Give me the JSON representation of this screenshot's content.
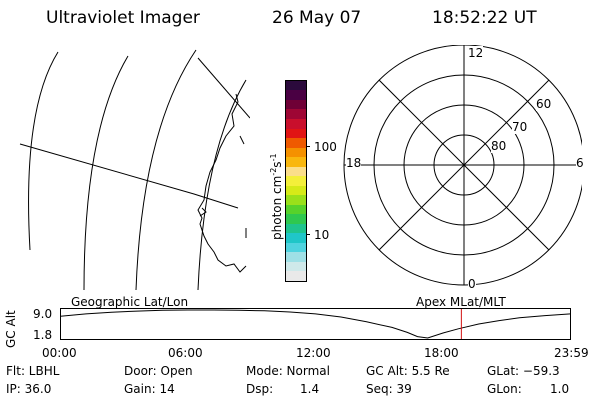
{
  "header": {
    "instrument": "Ultraviolet Imager",
    "date": "26 May 07",
    "time": "18:52:22 UT"
  },
  "colorbar": {
    "label": "photon cm-2s-1",
    "label_main": "photon cm",
    "label_sup1": "-2",
    "label_mid": "s",
    "label_sup2": "-1",
    "tick_100": "100",
    "tick_10": "10",
    "colors": [
      "#e9e9e9",
      "#cfe9ea",
      "#9fe0e6",
      "#4fd3df",
      "#1fc6c8",
      "#1fc48d",
      "#2fc84f",
      "#57d22b",
      "#9ae01a",
      "#d6ea18",
      "#f4ef3a",
      "#fbde8a",
      "#f9b70e",
      "#f59100",
      "#ef5a00",
      "#e11414",
      "#c90f2c",
      "#9e0634",
      "#6f0036",
      "#4a0043",
      "#2b0a3c"
    ]
  },
  "map": {
    "note": ""
  },
  "polar": {
    "mlt_12": "12",
    "mlt_18": "18",
    "mlt_6": "6",
    "mlt_0": "0",
    "lat_60": "60",
    "lat_70": "70",
    "lat_80": "80"
  },
  "altitude_plot": {
    "ylabel": "GC Alt",
    "ytick_top": "9.0",
    "ytick_bottom": "1.8",
    "left_label": "Geographic Lat/Lon",
    "right_label": "Apex MLat/MLT",
    "xticks": [
      "00:00",
      "06:00",
      "12:00",
      "18:00",
      "23:59"
    ],
    "current_time_fraction": 0.786,
    "curve": [
      [
        0,
        0.78
      ],
      [
        0.05,
        0.86
      ],
      [
        0.1,
        0.92
      ],
      [
        0.15,
        0.96
      ],
      [
        0.2,
        0.99
      ],
      [
        0.25,
        1.0
      ],
      [
        0.3,
        1.0
      ],
      [
        0.35,
        0.99
      ],
      [
        0.4,
        0.97
      ],
      [
        0.45,
        0.93
      ],
      [
        0.5,
        0.86
      ],
      [
        0.55,
        0.75
      ],
      [
        0.6,
        0.58
      ],
      [
        0.65,
        0.38
      ],
      [
        0.68,
        0.2
      ],
      [
        0.7,
        0.05
      ],
      [
        0.72,
        0.0
      ],
      [
        0.75,
        0.18
      ],
      [
        0.78,
        0.33
      ],
      [
        0.82,
        0.5
      ],
      [
        0.86,
        0.62
      ],
      [
        0.9,
        0.72
      ],
      [
        0.95,
        0.8
      ],
      [
        1.0,
        0.86
      ]
    ],
    "marker_color": "#d21010"
  },
  "info": {
    "flt": "Flt: LBHL",
    "door": "Door: Open",
    "mode": "Mode: Normal",
    "gc_alt": "GC Alt: 5.5 Re",
    "glat": "GLat: −59.3",
    "ip": "IP: 36.0",
    "gain": "Gain: 14",
    "dsp_label": "Dsp:",
    "dsp_value": "1.4",
    "seq": "Seq: 39",
    "glon_label": "GLon:",
    "glon_value": "1.0"
  }
}
